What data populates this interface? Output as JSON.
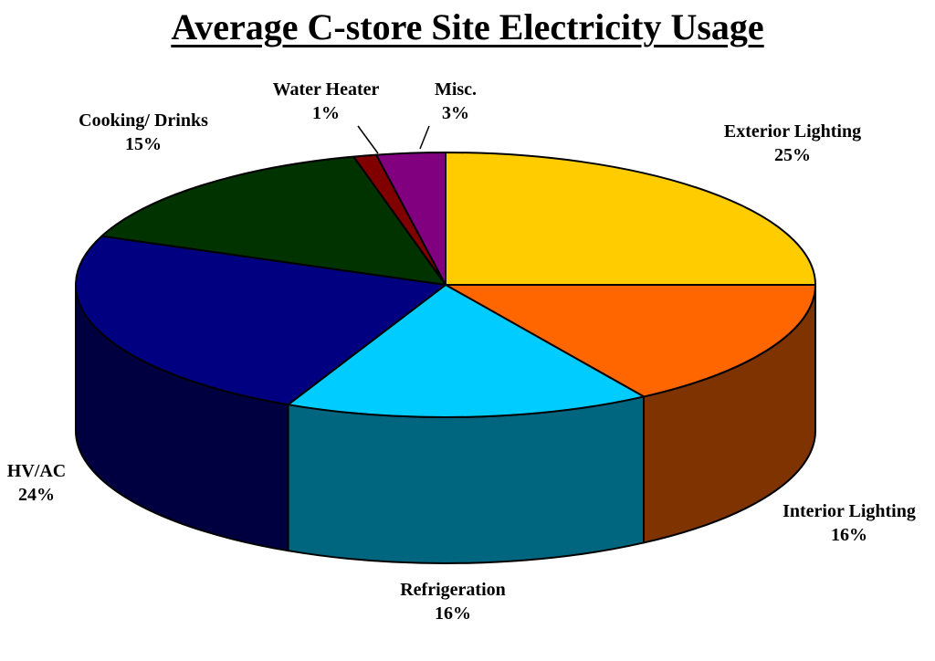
{
  "chart_data": {
    "type": "pie",
    "title": "Average C-store Site Electricity Usage",
    "slices": [
      {
        "label": "Exterior Lighting",
        "value": 25,
        "display": "25%",
        "top": "#FFCC00",
        "side": "#7F6600"
      },
      {
        "label": "Interior Lighting",
        "value": 16,
        "display": "16%",
        "top": "#FF6600",
        "side": "#7F3300"
      },
      {
        "label": "Refrigeration",
        "value": 16,
        "display": "16%",
        "top": "#00CCFF",
        "side": "#006680"
      },
      {
        "label": "HV/AC",
        "value": 24,
        "display": "24%",
        "top": "#000080",
        "side": "#000040"
      },
      {
        "label": "Cooking/ Drinks",
        "value": 15,
        "display": "15%",
        "top": "#003300",
        "side": "#001A00"
      },
      {
        "label": "Water Heater",
        "value": 1,
        "display": "1%",
        "top": "#800000",
        "side": "#400000"
      },
      {
        "label": "Misc.",
        "value": 3,
        "display": "3%",
        "top": "#800080",
        "side": "#400040"
      }
    ]
  }
}
